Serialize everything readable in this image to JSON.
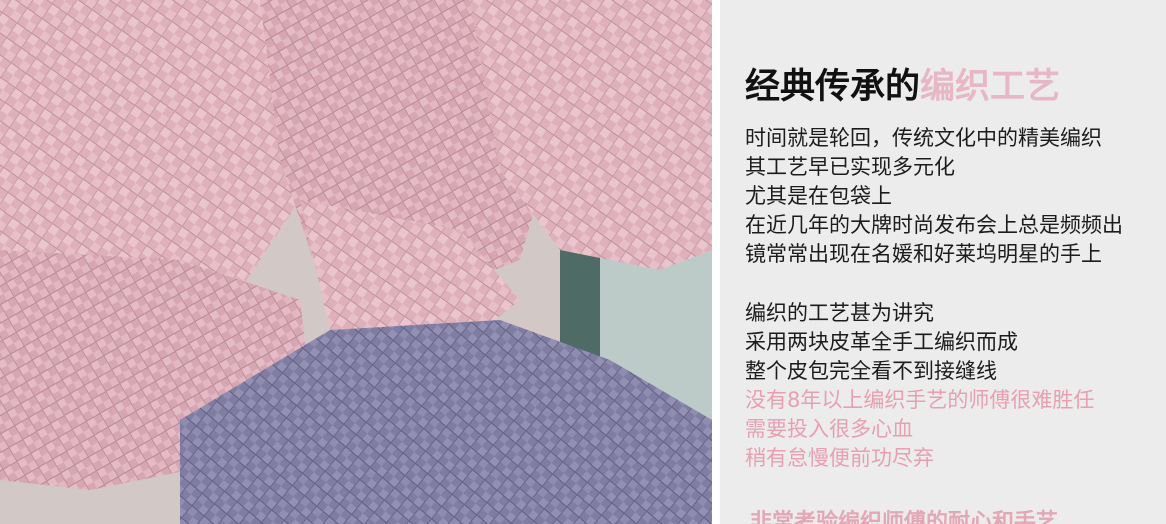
{
  "photo": {
    "image_label": "woven leather strips photo",
    "colors": {
      "pink": "#d9a9b4",
      "pink_dark": "#c08f9b",
      "lavender": "#7b78a0",
      "lavender_dark": "#5e5b85"
    }
  },
  "panel": {
    "title_black": "经典传承的",
    "title_pink": "编织工艺",
    "paragraph1": [
      "时间就是轮回，传统文化中的精美编织",
      "其工艺早已实现多元化",
      "尤其是在包袋上",
      "在近几年的大牌时尚发布会上总是频频出",
      "镜常常出现在名媛和好莱坞明星的手上"
    ],
    "paragraph2": [
      "编织的工艺甚为讲究",
      "采用两块皮革全手工编织而成",
      "整个皮包完全看不到接缝线"
    ],
    "paragraph2_pink": [
      "没有8年以上编织手艺的师傅很难胜任",
      "需要投入很多心血",
      "稍有怠慢便前功尽弃"
    ],
    "footer": "非常考验编织师傅的耐心和手艺",
    "accent_color": "#e8b7c5"
  }
}
